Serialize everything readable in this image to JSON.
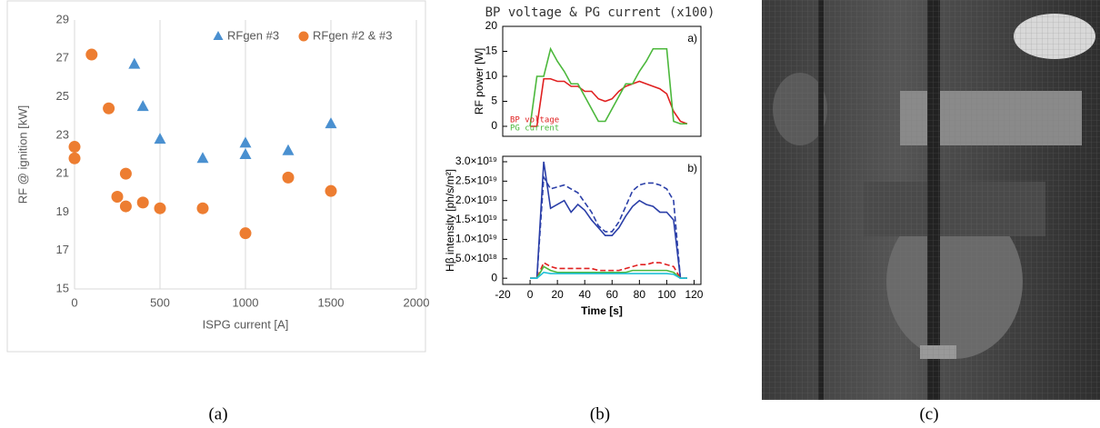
{
  "chart_data": [
    {
      "type": "scatter",
      "x_label": "ISPG current [A]",
      "y_label": "RF @ ignition [kW]",
      "xlim": [
        0,
        2000
      ],
      "xticks": [
        0,
        500,
        1000,
        1500,
        2000
      ],
      "ylim": [
        15,
        29
      ],
      "yticks": [
        15,
        17,
        19,
        21,
        23,
        25,
        27,
        29
      ],
      "grid": "x",
      "legend": "top right",
      "series": [
        {
          "name": "RFgen #3",
          "color": "#4a90d0",
          "marker": "triangle",
          "x": [
            350,
            400,
            500,
            750,
            1000,
            1000,
            1250,
            1500
          ],
          "values": [
            26.7,
            24.5,
            22.8,
            21.8,
            22.6,
            22.0,
            22.2,
            23.6
          ]
        },
        {
          "name": "RFgen #2 & #3",
          "color": "#ed7d31",
          "marker": "circle",
          "x": [
            0,
            0,
            100,
            200,
            250,
            300,
            300,
            400,
            500,
            750,
            1000,
            1250,
            1500
          ],
          "values": [
            22.4,
            21.8,
            27.2,
            24.4,
            19.8,
            21.0,
            19.3,
            19.5,
            19.2,
            19.2,
            17.9,
            20.8,
            20.1
          ]
        }
      ]
    },
    {
      "type": "line",
      "title": "BP voltage & PG current (x100)",
      "annotation": "a)",
      "y_label": "RF power [W]",
      "xlim": [
        -20,
        125
      ],
      "ylim": [
        -2,
        20
      ],
      "yticks": [
        0,
        5,
        10,
        15,
        20
      ],
      "legend": "bottom left",
      "x": [
        0,
        5,
        10,
        15,
        20,
        25,
        30,
        35,
        40,
        45,
        50,
        55,
        60,
        65,
        70,
        75,
        80,
        85,
        90,
        95,
        100,
        105,
        110,
        115
      ],
      "series": [
        {
          "name": "BP voltage",
          "color": "#e02020",
          "values": [
            0,
            0,
            9.5,
            9.5,
            9,
            9,
            8,
            8,
            7,
            7,
            5.5,
            5,
            5.5,
            7,
            8,
            8.5,
            9,
            8.5,
            8,
            7.5,
            6.5,
            3,
            1,
            0.5
          ]
        },
        {
          "name": "PG current",
          "color": "#4cb83c",
          "values": [
            0,
            10,
            10,
            15.5,
            13,
            11,
            8.5,
            8.5,
            6,
            3.5,
            1,
            1,
            3.5,
            6,
            8.5,
            8.5,
            11,
            13,
            15.5,
            15.5,
            15.5,
            1,
            0.5,
            0.5
          ]
        }
      ]
    },
    {
      "type": "line",
      "annotation": "b)",
      "x_label": "Time [s]",
      "y_label": "Hβ intensity [ph/s/m²]",
      "xlim": [
        -20,
        125
      ],
      "xticks": [
        -20,
        0,
        20,
        40,
        60,
        80,
        100,
        120
      ],
      "ylim": [
        -1.6e+18,
        3.14e+19
      ],
      "yticks": [
        0,
        {
          "value": 5e+18,
          "label": "5.0×10¹⁸"
        },
        {
          "value": 1e+19,
          "label": "1.0×10¹⁹"
        },
        {
          "value": 1.5e+19,
          "label": "1.5×10¹⁹"
        },
        {
          "value": 2e+19,
          "label": "2.0×10¹⁹"
        },
        {
          "value": 2.5e+19,
          "label": "2.5×10¹⁹"
        },
        {
          "value": 3e+19,
          "label": "3.0×10¹⁹"
        }
      ],
      "x": [
        0,
        5,
        10,
        15,
        20,
        25,
        30,
        35,
        40,
        45,
        50,
        55,
        60,
        65,
        70,
        75,
        80,
        85,
        90,
        95,
        100,
        105,
        110,
        115
      ],
      "series": [
        {
          "color": "#2b3fa8",
          "dash": false,
          "values": [
            0,
            0,
            3e+19,
            1.8e+19,
            1.9e+19,
            2e+19,
            1.7e+19,
            1.9e+19,
            1.75e+19,
            1.5e+19,
            1.3e+19,
            1.1e+19,
            1.1e+19,
            1.3e+19,
            1.6e+19,
            1.85e+19,
            2e+19,
            1.9e+19,
            1.85e+19,
            1.7e+19,
            1.7e+19,
            1.5e+19,
            0,
            0
          ]
        },
        {
          "color": "#2b3fa8",
          "dash": true,
          "values": [
            0,
            0,
            2.6e+19,
            2.3e+19,
            2.35e+19,
            2.4e+19,
            2.3e+19,
            2.2e+19,
            1.95e+19,
            1.7e+19,
            1.35e+19,
            1.2e+19,
            1.2e+19,
            1.45e+19,
            1.85e+19,
            2.25e+19,
            2.4e+19,
            2.45e+19,
            2.45e+19,
            2.4e+19,
            2.3e+19,
            2e+19,
            0,
            0
          ]
        },
        {
          "color": "#e02020",
          "dash": true,
          "values": [
            0,
            0,
            4e+18,
            3e+18,
            2.5e+18,
            2.5e+18,
            2.5e+18,
            2.5e+18,
            2.5e+18,
            2.5e+18,
            2e+18,
            2e+18,
            2e+18,
            2e+18,
            2.5e+18,
            3e+18,
            3.5e+18,
            3.5e+18,
            4e+18,
            4e+18,
            3.5e+18,
            3e+18,
            0,
            0
          ]
        },
        {
          "color": "#4cb83c",
          "dash": false,
          "values": [
            0,
            0,
            3e+18,
            2e+18,
            1.5e+18,
            1.5e+18,
            1.5e+18,
            1.5e+18,
            1.5e+18,
            1.5e+18,
            1.5e+18,
            1.5e+18,
            1.5e+18,
            1.5e+18,
            1.5e+18,
            2e+18,
            2e+18,
            2e+18,
            2e+18,
            2e+18,
            2e+18,
            1.5e+18,
            0,
            0
          ]
        },
        {
          "color": "#20c0d8",
          "dash": false,
          "values": [
            0,
            0,
            1.5e+18,
            1.2e+18,
            1.2e+18,
            1.2e+18,
            1.2e+18,
            1.2e+18,
            1.2e+18,
            1.2e+18,
            1.2e+18,
            1.2e+18,
            1.2e+18,
            1.2e+18,
            1.2e+18,
            1.2e+18,
            1.2e+18,
            1.2e+18,
            1.2e+18,
            1.2e+18,
            1.2e+18,
            1e+18,
            0,
            0
          ]
        }
      ]
    }
  ],
  "captions": [
    "(a)",
    "(b)",
    "(c)"
  ]
}
